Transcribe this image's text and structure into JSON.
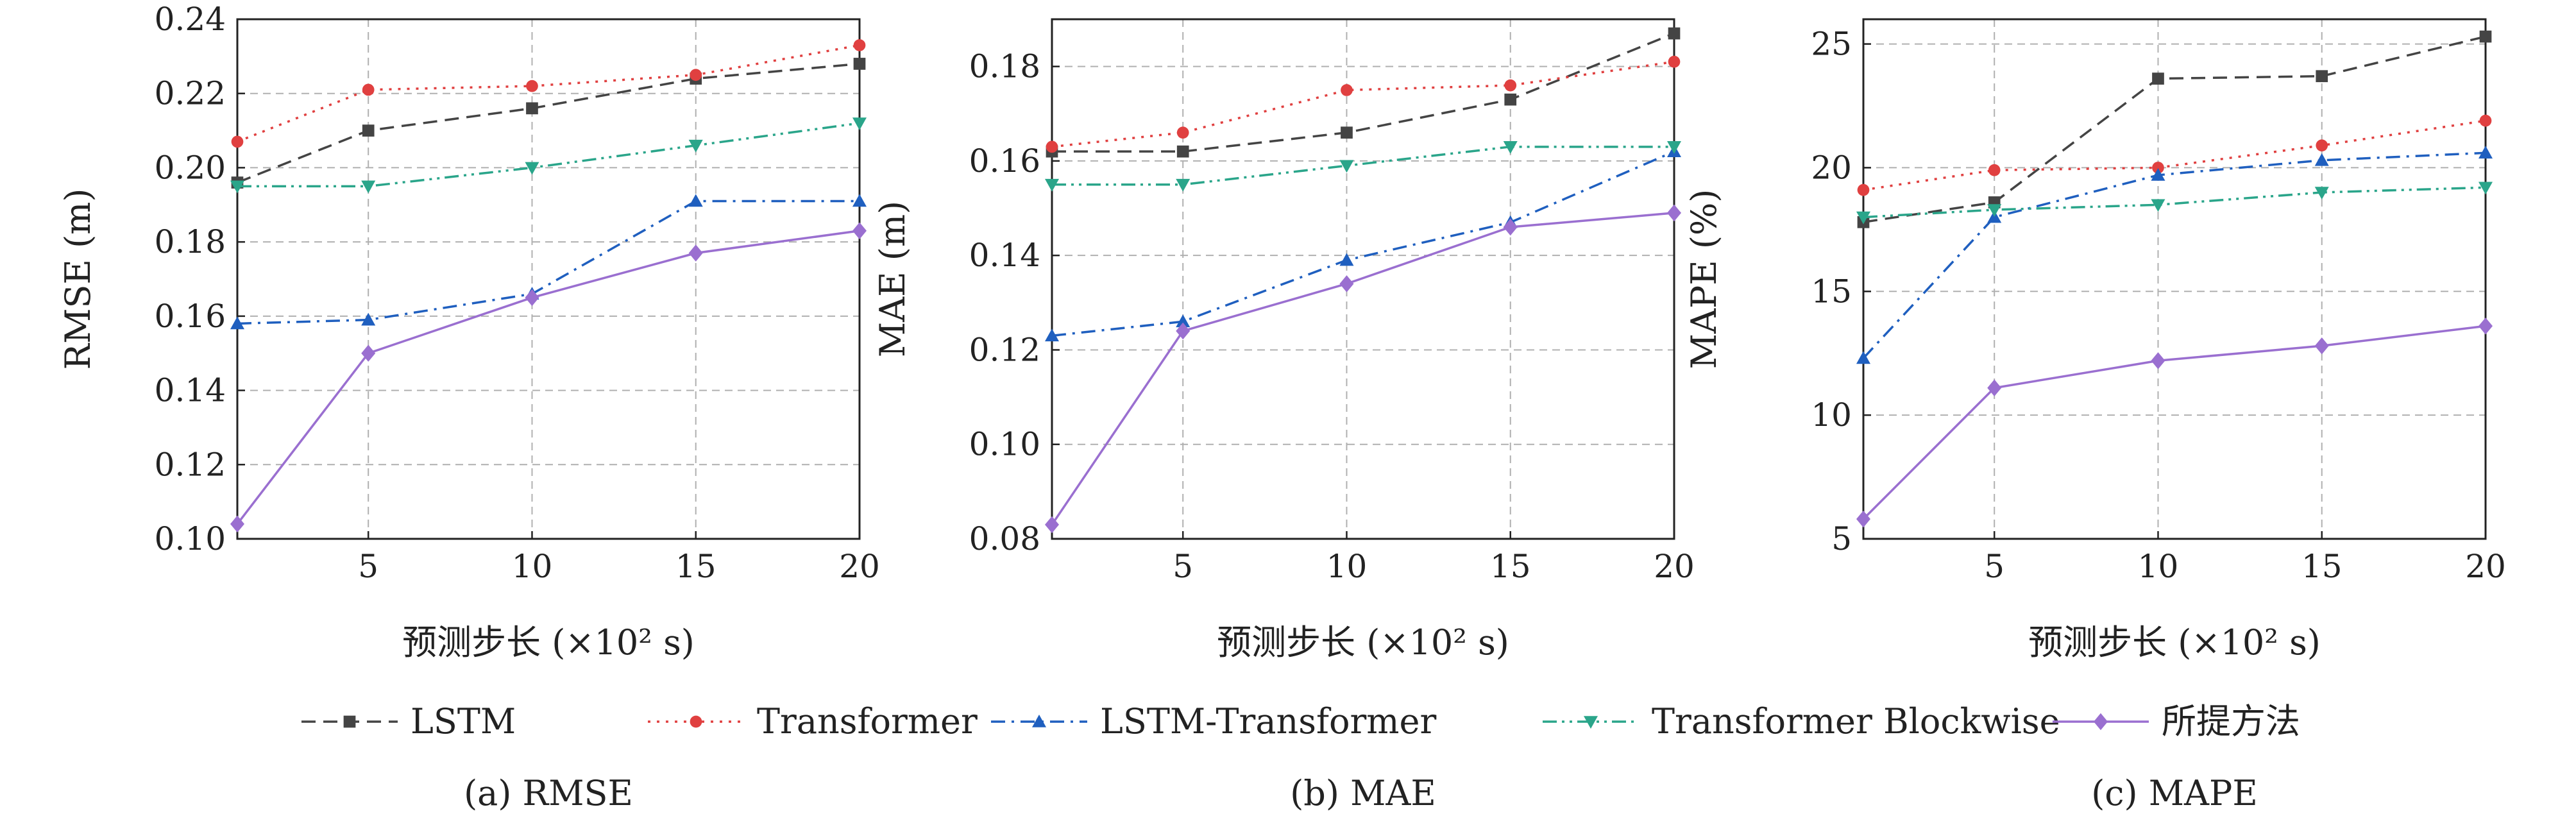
{
  "figure": {
    "legend": {
      "placement": "bottom-center"
    }
  },
  "series_styles": [
    {
      "name": "LSTM",
      "color": "#444444",
      "marker": "square",
      "dash": "dashed"
    },
    {
      "name": "Transformer",
      "color": "#e04040",
      "marker": "circle",
      "dash": "dotted"
    },
    {
      "name": "LSTM-Transformer",
      "color": "#1f5fbf",
      "marker": "triangle-up",
      "dash": "dashdot"
    },
    {
      "name": "Transformer Blockwise",
      "color": "#2aa58a",
      "marker": "triangle-down",
      "dash": "dashdotdot"
    },
    {
      "name": "所提方法",
      "color": "#9a6fd0",
      "marker": "diamond",
      "dash": "solid"
    }
  ],
  "chart_data": [
    {
      "type": "line",
      "caption": "(a) RMSE",
      "xlabel": "预测步长 (×10² s)",
      "ylabel": "RMSE (m)",
      "x": [
        1,
        5,
        10,
        15,
        20
      ],
      "xticks": [
        5,
        10,
        15,
        20
      ],
      "xlim": [
        1,
        20
      ],
      "ylim": [
        0.1,
        0.24
      ],
      "yticks": [
        "0.10",
        "0.12",
        "0.14",
        "0.16",
        "0.18",
        "0.20",
        "0.22",
        "0.24"
      ],
      "grid": true,
      "series": [
        {
          "name": "LSTM",
          "values": [
            0.196,
            0.21,
            0.216,
            0.224,
            0.228
          ]
        },
        {
          "name": "Transformer",
          "values": [
            0.207,
            0.221,
            0.222,
            0.225,
            0.233
          ]
        },
        {
          "name": "LSTM-Transformer",
          "values": [
            0.158,
            0.159,
            0.166,
            0.191,
            0.191
          ]
        },
        {
          "name": "Transformer Blockwise",
          "values": [
            0.195,
            0.195,
            0.2,
            0.206,
            0.212
          ]
        },
        {
          "name": "所提方法",
          "values": [
            0.104,
            0.15,
            0.165,
            0.177,
            0.183
          ]
        }
      ]
    },
    {
      "type": "line",
      "caption": "(b) MAE",
      "xlabel": "预测步长 (×10² s)",
      "ylabel": "MAE (m)",
      "x": [
        1,
        5,
        10,
        15,
        20
      ],
      "xticks": [
        5,
        10,
        15,
        20
      ],
      "xlim": [
        1,
        20
      ],
      "ylim": [
        0.08,
        0.19
      ],
      "yticks": [
        "0.08",
        "0.10",
        "0.12",
        "0.14",
        "0.16",
        "0.18"
      ],
      "grid": true,
      "series": [
        {
          "name": "LSTM",
          "values": [
            0.162,
            0.162,
            0.166,
            0.173,
            0.187
          ]
        },
        {
          "name": "Transformer",
          "values": [
            0.163,
            0.166,
            0.175,
            0.176,
            0.181
          ]
        },
        {
          "name": "LSTM-Transformer",
          "values": [
            0.123,
            0.126,
            0.139,
            0.147,
            0.162
          ]
        },
        {
          "name": "Transformer Blockwise",
          "values": [
            0.155,
            0.155,
            0.159,
            0.163,
            0.163
          ]
        },
        {
          "name": "所提方法",
          "values": [
            0.083,
            0.124,
            0.134,
            0.146,
            0.149
          ]
        }
      ]
    },
    {
      "type": "line",
      "caption": "(c) MAPE",
      "xlabel": "预测步长 (×10² s)",
      "ylabel": "MAPE (%)",
      "x": [
        1,
        5,
        10,
        15,
        20
      ],
      "xticks": [
        5,
        10,
        15,
        20
      ],
      "xlim": [
        1,
        20
      ],
      "ylim": [
        5,
        26
      ],
      "yticks": [
        "5",
        "10",
        "15",
        "20",
        "25"
      ],
      "grid": true,
      "series": [
        {
          "name": "LSTM",
          "values": [
            17.8,
            18.6,
            23.6,
            23.7,
            25.3
          ]
        },
        {
          "name": "Transformer",
          "values": [
            19.1,
            19.9,
            20.0,
            20.9,
            21.9
          ]
        },
        {
          "name": "LSTM-Transformer",
          "values": [
            12.3,
            18.0,
            19.7,
            20.3,
            20.6
          ]
        },
        {
          "name": "Transformer Blockwise",
          "values": [
            18.0,
            18.3,
            18.5,
            19.0,
            19.2
          ]
        },
        {
          "name": "所提方法",
          "values": [
            5.8,
            11.1,
            12.2,
            12.8,
            13.6
          ]
        }
      ]
    }
  ]
}
